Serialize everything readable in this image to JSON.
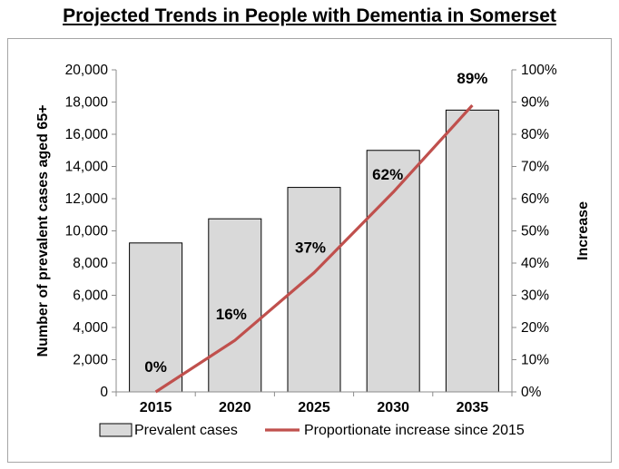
{
  "chart_data": {
    "type": "bar",
    "title": "Projected Trends in People with Dementia in Somerset",
    "categories": [
      "2015",
      "2020",
      "2025",
      "2030",
      "2035"
    ],
    "series": [
      {
        "name": "Prevalent cases",
        "type": "bar",
        "axis": "left",
        "values": [
          9250,
          10750,
          12700,
          15000,
          17500
        ],
        "color": "#d9d9d9"
      },
      {
        "name": "Proportionate increase since 2015",
        "type": "line",
        "axis": "right",
        "values": [
          0,
          16,
          37,
          62,
          89
        ],
        "color": "#c0504d"
      }
    ],
    "data_labels": [
      "0%",
      "16%",
      "37%",
      "62%",
      "89%"
    ],
    "ylabel": "Number of prevalent cases aged 65+",
    "y2label": "Increase",
    "xlabel": "",
    "ylim": [
      0,
      20000
    ],
    "y2lim": [
      0,
      100
    ],
    "yticks": [
      "0",
      "2,000",
      "4,000",
      "6,000",
      "8,000",
      "10,000",
      "12,000",
      "14,000",
      "16,000",
      "18,000",
      "20,000"
    ],
    "y2ticks": [
      "0%",
      "10%",
      "20%",
      "30%",
      "40%",
      "50%",
      "60%",
      "70%",
      "80%",
      "90%",
      "100%"
    ],
    "grid": false,
    "legend": "bottom"
  }
}
